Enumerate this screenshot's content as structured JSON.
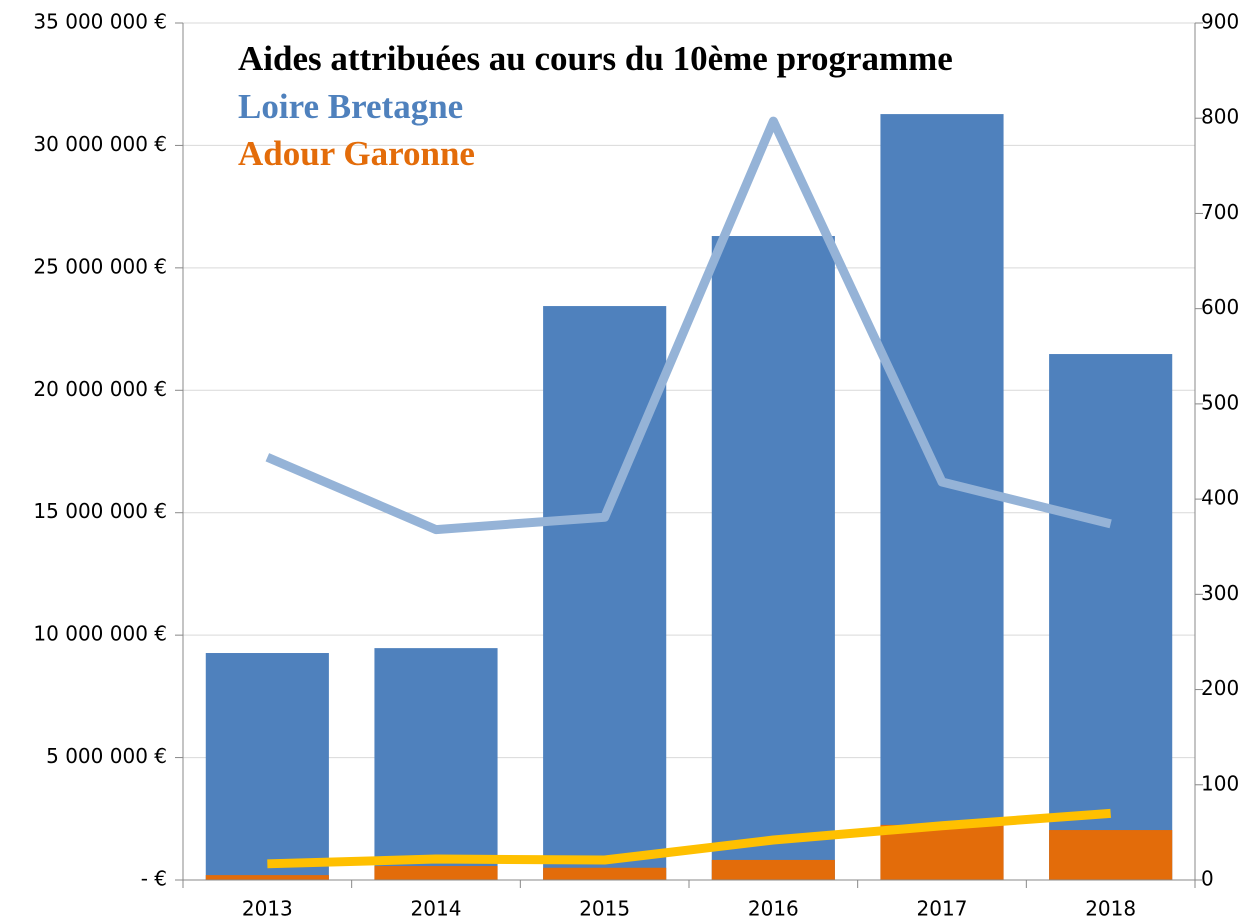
{
  "chart_data": {
    "type": "bar",
    "title": "Aides attribuées au cours du 10ème programme",
    "categories": [
      "2013",
      "2014",
      "2015",
      "2016",
      "2017",
      "2018"
    ],
    "series": [
      {
        "name": "Loire Bretagne",
        "type": "bar",
        "color": "#4f81bd",
        "values": [
          9270000,
          9470000,
          23440000,
          26300000,
          31280000,
          21480000
        ]
      },
      {
        "name": "Adour Garonne",
        "type": "bar",
        "color": "#e36c0a",
        "values": [
          200000,
          570000,
          500000,
          820000,
          2250000,
          2040000
        ]
      },
      {
        "type": "line",
        "axis": "y2",
        "color": "#95b3d7",
        "values": [
          444,
          368,
          381,
          797,
          418,
          374
        ]
      },
      {
        "type": "line",
        "axis": "y2",
        "color": "#ffc000",
        "values": [
          17,
          22,
          21,
          42,
          57,
          70
        ]
      }
    ],
    "ylim": [
      0,
      35000000
    ],
    "yticks": [
      {
        "value": 0,
        "label": "- €"
      },
      {
        "value": 5000000,
        "label": "5 000 000 €"
      },
      {
        "value": 10000000,
        "label": "10 000 000 €"
      },
      {
        "value": 15000000,
        "label": "15 000 000 €"
      },
      {
        "value": 20000000,
        "label": "20 000 000 €"
      },
      {
        "value": 25000000,
        "label": "25 000 000 €"
      },
      {
        "value": 30000000,
        "label": "30 000 000 €"
      },
      {
        "value": 35000000,
        "label": "35 000 000 €"
      }
    ],
    "y2lim": [
      0,
      900
    ],
    "y2ticks": [
      0,
      100,
      200,
      300,
      400,
      500,
      600,
      700,
      800,
      900
    ],
    "grid": true
  }
}
